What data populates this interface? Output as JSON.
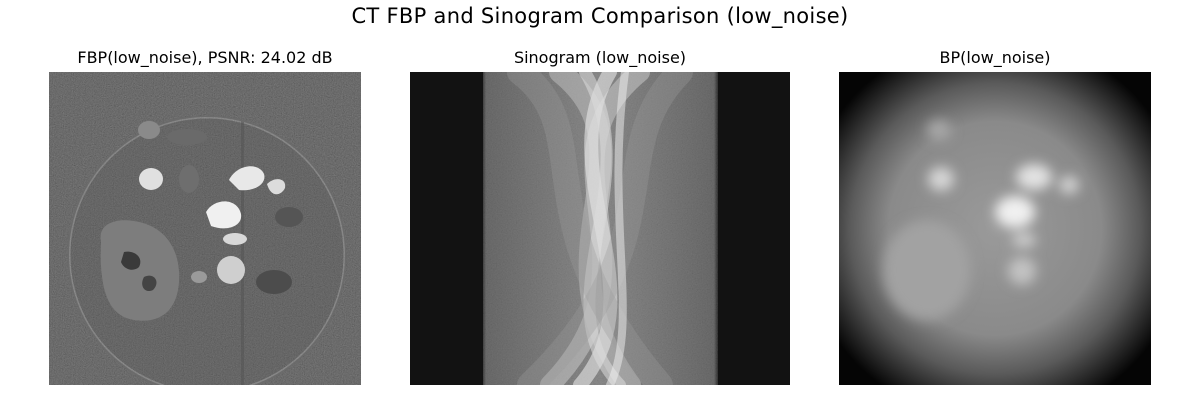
{
  "figure": {
    "title": "CT FBP and Sinogram Comparison (low_noise)"
  },
  "panels": [
    {
      "title": "FBP(low_noise), PSNR: 24.02 dB",
      "image": "fbp-reconstruction"
    },
    {
      "title": "Sinogram (low_noise)",
      "image": "sinogram"
    },
    {
      "title": "BP(low_noise)",
      "image": "backprojection-blurred"
    }
  ],
  "colors": {
    "background": "#ffffff",
    "colormap": "gray"
  }
}
